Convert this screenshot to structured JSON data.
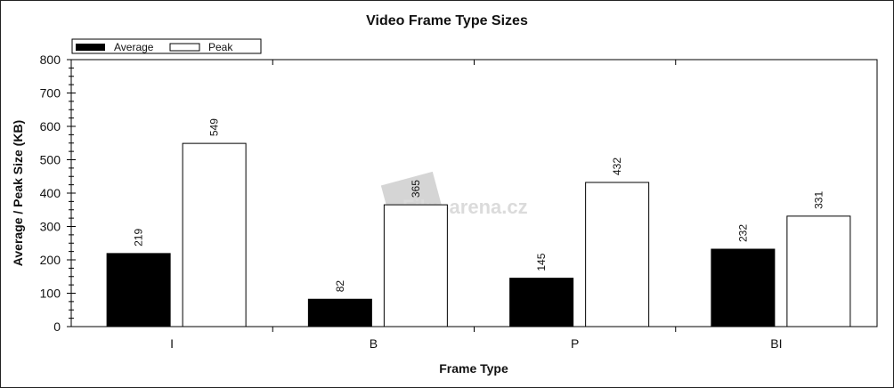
{
  "chart_data": {
    "type": "bar",
    "title": "Video Frame Type Sizes",
    "xlabel": "Frame Type",
    "ylabel": "Average / Peak Size (KB)",
    "categories": [
      "I",
      "B",
      "P",
      "BI"
    ],
    "series": [
      {
        "name": "Average",
        "values": [
          219,
          82,
          145,
          232
        ],
        "color": "#000000"
      },
      {
        "name": "Peak",
        "values": [
          549,
          365,
          432,
          331
        ],
        "color": "#ffffff"
      }
    ],
    "ylim": [
      0,
      800
    ],
    "yticks": [
      0,
      100,
      200,
      300,
      400,
      500,
      600,
      700,
      800
    ],
    "grid": false,
    "legend": "top-left",
    "watermark": "Film-arena.cz"
  }
}
